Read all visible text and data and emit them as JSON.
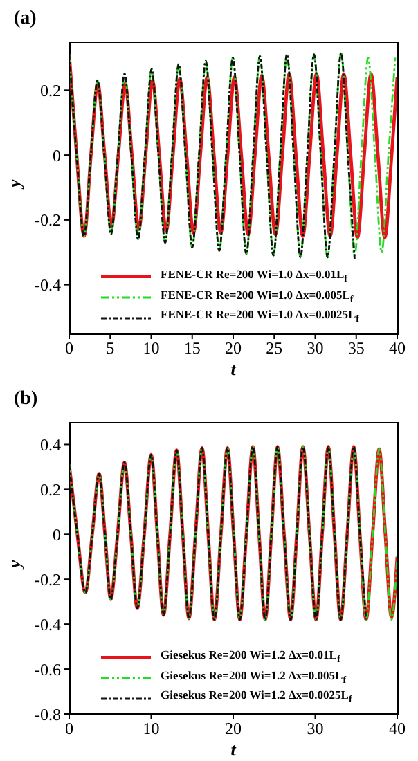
{
  "chart_data": [
    {
      "type": "line",
      "title": "(a)",
      "xlabel": "t",
      "ylabel": "y",
      "xlim": [
        0,
        40
      ],
      "xticks": [
        0,
        5,
        10,
        15,
        20,
        25,
        30,
        35,
        40
      ],
      "ylim": [
        -0.55,
        0.35
      ],
      "yticks": [
        -0.4,
        -0.2,
        0,
        0.2
      ],
      "legend": "bottom",
      "series": [
        {
          "name": "FENE-CR Re=200 Wi=1.0 Δx=0.01L$_{f}$",
          "color": "#e8141b",
          "line_style": "solid",
          "x": [
            0,
            0.91,
            1.82,
            2.65,
            3.48,
            4.32,
            5.15,
            5.99,
            6.82,
            7.65,
            8.48,
            9.32,
            10.15,
            10.99,
            11.82,
            12.65,
            13.48,
            14.32,
            15.15,
            15.99,
            16.82,
            17.65,
            18.48,
            19.32,
            20.15,
            20.99,
            21.82,
            22.65,
            23.48,
            24.32,
            25.15,
            25.99,
            26.82,
            27.65,
            28.48,
            29.32,
            30.15,
            30.99,
            31.82,
            32.65,
            33.48,
            34.32,
            35.15,
            35.98,
            36.81,
            37.65,
            38.48,
            39.32,
            40
          ],
          "values": [
            0.31,
            0,
            -0.25,
            0,
            0.22,
            0,
            -0.22,
            0,
            0.22,
            0,
            -0.23,
            0,
            0.23,
            0,
            -0.235,
            0,
            0.235,
            0,
            -0.24,
            0,
            0.24,
            0,
            -0.24,
            0,
            0.24,
            0,
            -0.245,
            0,
            0.245,
            0,
            -0.245,
            0,
            0.25,
            0,
            -0.25,
            0,
            0.25,
            0,
            -0.25,
            0,
            0.25,
            0,
            -0.255,
            0,
            0.25,
            0,
            -0.255,
            0,
            0.24
          ]
        },
        {
          "name": "FENE-CR Re=200 Wi=1.0 Δx=0.005L$_{f}$",
          "color": "#22dd22",
          "line_style": "dashed",
          "x": [
            0,
            0.9,
            1.8,
            2.63,
            3.45,
            4.28,
            5.1,
            5.93,
            6.75,
            7.58,
            8.4,
            9.23,
            10.05,
            10.88,
            11.7,
            12.53,
            13.35,
            14.18,
            15.0,
            15.83,
            16.65,
            17.48,
            18.3,
            19.13,
            19.95,
            20.78,
            21.6,
            22.43,
            23.25,
            24.08,
            24.9,
            25.73,
            26.55,
            27.38,
            28.2,
            29.03,
            29.85,
            30.68,
            31.5,
            32.33,
            33.15,
            33.98,
            34.8,
            35.63,
            36.45,
            37.28,
            38.1,
            38.93,
            39.75
          ],
          "values": [
            0.31,
            0,
            -0.25,
            0,
            0.23,
            0,
            -0.245,
            0,
            0.25,
            0,
            -0.26,
            0,
            0.265,
            0,
            -0.27,
            0,
            0.28,
            0,
            -0.285,
            0,
            0.29,
            0,
            -0.295,
            0,
            0.3,
            0,
            -0.305,
            0,
            0.305,
            0,
            -0.31,
            0,
            0.31,
            0,
            -0.315,
            0,
            0.31,
            0,
            -0.315,
            0,
            0.315,
            0,
            -0.31,
            0,
            0.3,
            0,
            -0.3,
            0,
            0.3
          ]
        },
        {
          "name": "FENE-CR Re=200 Wi=1.0 Δx=0.0025L$_{f}$",
          "color": "#111111",
          "line_style": "dashed",
          "x": [
            0,
            0.9,
            1.8,
            2.63,
            3.45,
            4.28,
            5.1,
            5.93,
            6.75,
            7.58,
            8.4,
            9.23,
            10.05,
            10.88,
            11.7,
            12.53,
            13.35,
            14.18,
            15.0,
            15.83,
            16.65,
            17.48,
            18.3,
            19.13,
            19.95,
            20.78,
            21.6,
            22.43,
            23.25,
            24.08,
            24.9,
            25.73,
            26.55,
            27.38,
            28.2,
            29.03,
            29.85,
            30.68,
            31.5,
            32.33,
            33.15,
            33.98,
            34.8
          ],
          "values": [
            0.31,
            0,
            -0.25,
            0,
            0.23,
            0,
            -0.245,
            0,
            0.25,
            0,
            -0.26,
            0,
            0.265,
            0,
            -0.27,
            0,
            0.28,
            0,
            -0.285,
            0,
            0.29,
            0,
            -0.295,
            0,
            0.3,
            0,
            -0.305,
            0,
            0.305,
            0,
            -0.31,
            0,
            0.31,
            0,
            -0.315,
            0,
            0.31,
            0,
            -0.315,
            0,
            0.315,
            0,
            -0.32
          ]
        }
      ]
    },
    {
      "type": "line",
      "title": "(b)",
      "xlabel": "t",
      "ylabel": "y",
      "xlim": [
        0,
        40
      ],
      "xticks": [
        0,
        10,
        20,
        30,
        40
      ],
      "ylim": [
        -0.8,
        0.5
      ],
      "yticks": [
        -0.8,
        -0.6,
        -0.4,
        -0.2,
        0,
        0.2,
        0.4
      ],
      "legend": "bottom",
      "series": [
        {
          "name": "Giesekus Re=200 Wi=1.2 Δx=0.01L$_{f}$",
          "color": "#e8141b",
          "line_style": "solid",
          "x": [
            0,
            0.99,
            1.97,
            2.81,
            3.65,
            4.36,
            5.06,
            5.9,
            6.74,
            7.52,
            8.3,
            9.15,
            10.0,
            10.75,
            11.5,
            12.3,
            13.1,
            13.85,
            14.6,
            15.4,
            16.2,
            16.95,
            17.7,
            18.5,
            19.3,
            20.05,
            20.8,
            21.6,
            22.4,
            23.15,
            23.9,
            24.65,
            25.4,
            26.2,
            27.0,
            27.75,
            28.5,
            29.3,
            30.1,
            30.85,
            31.6,
            32.35,
            33.1,
            33.9,
            34.7,
            35.45,
            36.2,
            37.0,
            37.8,
            38.55,
            39.3,
            40
          ],
          "values": [
            0.31,
            0,
            -0.26,
            0,
            0.27,
            0,
            -0.29,
            0,
            0.32,
            0,
            -0.33,
            0,
            0.355,
            0,
            -0.36,
            0,
            0.375,
            0,
            -0.375,
            0,
            0.385,
            0,
            -0.38,
            0,
            0.385,
            0,
            -0.38,
            0,
            0.39,
            0,
            -0.38,
            0,
            0.39,
            0,
            -0.38,
            0,
            0.39,
            0,
            -0.38,
            0,
            0.39,
            0,
            -0.38,
            0,
            0.39,
            0,
            -0.38,
            0,
            0.38,
            0,
            -0.37,
            -0.1
          ]
        },
        {
          "name": "Giesekus Re=200 Wi=1.2 Δx=0.005L$_{f}$",
          "color": "#22dd22",
          "line_style": "dashed",
          "x": [
            0,
            0.99,
            1.97,
            2.81,
            3.65,
            4.36,
            5.06,
            5.9,
            6.74,
            7.52,
            8.3,
            9.15,
            10.0,
            10.75,
            11.5,
            12.3,
            13.1,
            13.85,
            14.6,
            15.4,
            16.2,
            16.95,
            17.7,
            18.5,
            19.3,
            20.05,
            20.8,
            21.6,
            22.4,
            23.15,
            23.9,
            24.65,
            25.4,
            26.2,
            27.0,
            27.75,
            28.5,
            29.3,
            30.1,
            30.85,
            31.6,
            32.35,
            33.1,
            33.9,
            34.7,
            35.45,
            36.2,
            37.0,
            37.8,
            38.55,
            39.3,
            40
          ],
          "values": [
            0.31,
            0,
            -0.26,
            0,
            0.27,
            0,
            -0.29,
            0,
            0.32,
            0,
            -0.33,
            0,
            0.355,
            0,
            -0.36,
            0,
            0.375,
            0,
            -0.375,
            0,
            0.385,
            0,
            -0.38,
            0,
            0.385,
            0,
            -0.38,
            0,
            0.39,
            0,
            -0.38,
            0,
            0.39,
            0,
            -0.38,
            0,
            0.39,
            0,
            -0.38,
            0,
            0.39,
            0,
            -0.38,
            0,
            0.39,
            0,
            -0.38,
            0,
            0.38,
            0,
            -0.38,
            -0.1
          ]
        },
        {
          "name": "Giesekus Re=200 Wi=1.2 Δx=0.0025L$_{f}$",
          "color": "#111111",
          "line_style": "dashed",
          "x": [
            0,
            0.99,
            1.97,
            2.81,
            3.65,
            4.36,
            5.06,
            5.9,
            6.74,
            7.52,
            8.3,
            9.15,
            10.0,
            10.75,
            11.5,
            12.3,
            13.1,
            13.85,
            14.6,
            15.4,
            16.2,
            16.95,
            17.7,
            18.5,
            19.3,
            20.05,
            20.8,
            21.6,
            22.4,
            23.15,
            23.9,
            24.65,
            25.4,
            26.2,
            27.0,
            27.75,
            28.5,
            29.3,
            30.1,
            30.85,
            31.6,
            32.35,
            33.1,
            33.9,
            34.7,
            35.45,
            36.2
          ],
          "values": [
            0.31,
            0,
            -0.26,
            0,
            0.27,
            0,
            -0.29,
            0,
            0.32,
            0,
            -0.33,
            0,
            0.355,
            0,
            -0.36,
            0,
            0.375,
            0,
            -0.375,
            0,
            0.385,
            0,
            -0.38,
            0,
            0.385,
            0,
            -0.38,
            0,
            0.39,
            0,
            -0.38,
            0,
            0.39,
            0,
            -0.38,
            0,
            0.39,
            0,
            -0.38,
            0,
            0.39,
            0,
            -0.38,
            0,
            0.39,
            0,
            -0.38
          ]
        }
      ]
    }
  ]
}
